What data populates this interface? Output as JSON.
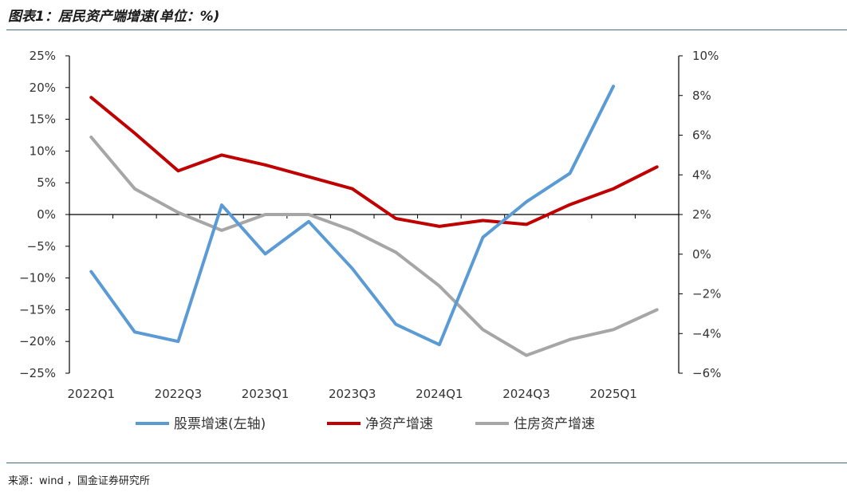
{
  "title": "图表1：居民资产端增速(单位：%)",
  "source": "来源：wind ，国金证券研究所",
  "chart_data": {
    "type": "line",
    "title": "图表1：居民资产端增速(单位：%)",
    "categories": [
      "2022Q1",
      "2022Q2",
      "2022Q3",
      "2022Q4",
      "2023Q1",
      "2023Q2",
      "2023Q3",
      "2023Q4",
      "2024Q1",
      "2024Q2",
      "2024Q3",
      "2024Q4",
      "2025Q1",
      "2025Q2"
    ],
    "x_tick_labels": [
      "2022Q1",
      "2022Q3",
      "2023Q1",
      "2023Q3",
      "2024Q1",
      "2024Q3",
      "2025Q1"
    ],
    "left_axis": {
      "ylim": [
        -25,
        25
      ],
      "ticks": [
        25,
        20,
        15,
        10,
        5,
        0,
        -5,
        -10,
        -15,
        -20,
        -25
      ],
      "tick_labels": [
        "25%",
        "20%",
        "15%",
        "10%",
        "5%",
        "0%",
        "−5%",
        "−10%",
        "−15%",
        "−20%",
        "−25%"
      ]
    },
    "right_axis": {
      "ylim": [
        -6,
        10
      ],
      "ticks": [
        10,
        8,
        6,
        4,
        2,
        0,
        -2,
        -4,
        -6
      ],
      "tick_labels": [
        "10%",
        "8%",
        "6%",
        "4%",
        "2%",
        "0%",
        "−2%",
        "−4%",
        "−6%"
      ]
    },
    "series": [
      {
        "name": "股票增速(左轴)",
        "axis": "left",
        "color": "#5b9bd5",
        "values": [
          -9.0,
          -18.5,
          -20.0,
          1.5,
          -6.2,
          -1.1,
          -8.5,
          -17.3,
          -20.5,
          -3.6,
          2.0,
          6.5,
          20.2,
          null
        ]
      },
      {
        "name": "净资产增速",
        "axis": "right",
        "color": "#c00000",
        "values": [
          7.9,
          6.1,
          4.2,
          5.0,
          4.5,
          3.9,
          3.3,
          1.8,
          1.4,
          1.7,
          1.5,
          2.5,
          3.3,
          4.4
        ]
      },
      {
        "name": "住房资产增速",
        "axis": "right",
        "color": "#a6a6a6",
        "values": [
          5.9,
          3.3,
          2.1,
          1.2,
          2.0,
          2.0,
          1.2,
          0.1,
          -1.6,
          -3.8,
          -5.1,
          -4.3,
          -3.8,
          -2.8
        ]
      }
    ],
    "grid": false,
    "legend": "bottom"
  }
}
